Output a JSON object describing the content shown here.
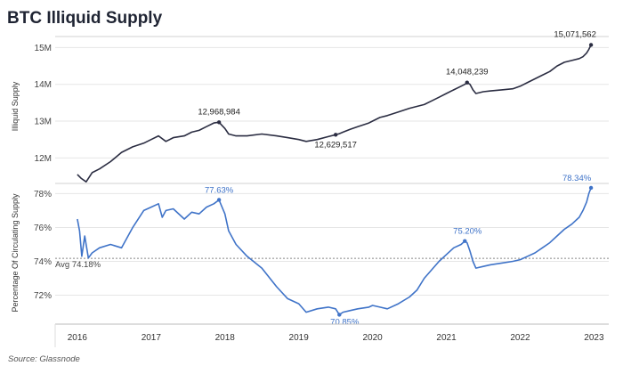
{
  "title": "BTC Illiquid Supply",
  "source": "Source: Glassnode",
  "colors": {
    "top_line": "#2b2d42",
    "bottom_line": "#3f73c8",
    "annotation_top": "#222222",
    "annotation_bottom": "#3f73c8",
    "grid": "#e6e6e6",
    "avg_line": "#888888"
  },
  "chart_data": [
    {
      "type": "line",
      "title": "BTC Illiquid Supply",
      "xlabel": "",
      "ylabel": "Illiquid Supply",
      "x_ticks": [
        "2016",
        "2017",
        "2018",
        "2019",
        "2020",
        "2021",
        "2022",
        "2023"
      ],
      "y_ticks": [
        "12M",
        "13M",
        "14M",
        "15M"
      ],
      "ylim": [
        11500000,
        15300000
      ],
      "xlim": [
        2015.7,
        2023.2
      ],
      "grid": true,
      "series": [
        {
          "x": [
            2016.0,
            2016.05,
            2016.12,
            2016.2,
            2016.3,
            2016.45,
            2016.6,
            2016.75,
            2016.9,
            2017.0,
            2017.1,
            2017.2,
            2017.3,
            2017.45,
            2017.55,
            2017.65,
            2017.75,
            2017.85,
            2017.92,
            2018.0,
            2018.05,
            2018.15,
            2018.3,
            2018.5,
            2018.7,
            2018.85,
            2019.0,
            2019.1,
            2019.25,
            2019.4,
            2019.5,
            2019.55,
            2019.6,
            2019.7,
            2019.8,
            2019.95,
            2020.0,
            2020.1,
            2020.2,
            2020.35,
            2020.5,
            2020.6,
            2020.7,
            2020.8,
            2020.9,
            2021.0,
            2021.1,
            2021.2,
            2021.25,
            2021.28,
            2021.32,
            2021.36,
            2021.4,
            2021.5,
            2021.6,
            2021.75,
            2021.9,
            2022.0,
            2022.1,
            2022.2,
            2022.3,
            2022.4,
            2022.5,
            2022.6,
            2022.7,
            2022.8,
            2022.85,
            2022.9,
            2022.93,
            2022.96
          ],
          "values": [
            11550000,
            11450000,
            11350000,
            11600000,
            11700000,
            11900000,
            12150000,
            12300000,
            12400000,
            12500000,
            12600000,
            12450000,
            12550000,
            12600000,
            12700000,
            12750000,
            12850000,
            12950000,
            12968984,
            12800000,
            12650000,
            12600000,
            12600000,
            12650000,
            12600000,
            12550000,
            12500000,
            12450000,
            12500000,
            12580000,
            12629517,
            12660000,
            12700000,
            12780000,
            12850000,
            12950000,
            13000000,
            13100000,
            13150000,
            13250000,
            13350000,
            13400000,
            13450000,
            13550000,
            13650000,
            13750000,
            13850000,
            13950000,
            14000000,
            14048239,
            14000000,
            13850000,
            13750000,
            13800000,
            13820000,
            13850000,
            13880000,
            13950000,
            14050000,
            14150000,
            14250000,
            14350000,
            14500000,
            14600000,
            14650000,
            14700000,
            14750000,
            14850000,
            14950000,
            15071562
          ]
        }
      ],
      "annotations": [
        {
          "label": "12,968,984",
          "x": 2017.92,
          "y": 12968984
        },
        {
          "label": "12,629,517",
          "x": 2019.5,
          "y": 12629517
        },
        {
          "label": "14,048,239",
          "x": 2021.28,
          "y": 14048239
        },
        {
          "label": "15,071,562",
          "x": 2022.96,
          "y": 15071562
        }
      ]
    },
    {
      "type": "line",
      "title": "",
      "xlabel": "",
      "ylabel": "Percentage Of Circulating Supply",
      "x_ticks": [
        "2016",
        "2017",
        "2018",
        "2019",
        "2020",
        "2021",
        "2022",
        "2023"
      ],
      "y_ticks": [
        "72%",
        "74%",
        "76%",
        "78%"
      ],
      "ylim": [
        70.4,
        78.6
      ],
      "xlim": [
        2015.7,
        2023.2
      ],
      "grid": true,
      "reference_line": {
        "label": "Avg 74.18%",
        "value": 74.18
      },
      "series": [
        {
          "x": [
            2016.0,
            2016.03,
            2016.06,
            2016.1,
            2016.15,
            2016.2,
            2016.3,
            2016.45,
            2016.6,
            2016.75,
            2016.9,
            2017.0,
            2017.1,
            2017.15,
            2017.2,
            2017.3,
            2017.45,
            2017.55,
            2017.65,
            2017.75,
            2017.85,
            2017.92,
            2018.0,
            2018.05,
            2018.15,
            2018.3,
            2018.5,
            2018.7,
            2018.85,
            2019.0,
            2019.1,
            2019.25,
            2019.4,
            2019.5,
            2019.55,
            2019.6,
            2019.7,
            2019.8,
            2019.95,
            2020.0,
            2020.1,
            2020.2,
            2020.35,
            2020.5,
            2020.6,
            2020.7,
            2020.8,
            2020.9,
            2021.0,
            2021.1,
            2021.2,
            2021.25,
            2021.28,
            2021.32,
            2021.36,
            2021.4,
            2021.5,
            2021.6,
            2021.75,
            2021.9,
            2022.0,
            2022.1,
            2022.2,
            2022.3,
            2022.4,
            2022.5,
            2022.6,
            2022.7,
            2022.8,
            2022.85,
            2022.9,
            2022.93,
            2022.96
          ],
          "values": [
            76.5,
            75.8,
            74.3,
            75.5,
            74.2,
            74.5,
            74.8,
            75.0,
            74.8,
            76.0,
            77.0,
            77.2,
            77.4,
            76.6,
            77.0,
            77.1,
            76.5,
            76.9,
            76.8,
            77.2,
            77.4,
            77.63,
            76.8,
            75.8,
            75.0,
            74.3,
            73.6,
            72.5,
            71.8,
            71.5,
            71.0,
            71.2,
            71.3,
            71.2,
            70.85,
            71.0,
            71.1,
            71.2,
            71.3,
            71.4,
            71.3,
            71.2,
            71.5,
            71.9,
            72.3,
            73.0,
            73.5,
            74.0,
            74.4,
            74.8,
            75.0,
            75.2,
            75.1,
            74.6,
            74.0,
            73.6,
            73.7,
            73.8,
            73.9,
            74.0,
            74.1,
            74.3,
            74.5,
            74.8,
            75.1,
            75.5,
            75.9,
            76.2,
            76.6,
            77.0,
            77.5,
            78.0,
            78.34
          ]
        }
      ],
      "annotations": [
        {
          "label": "77.63%",
          "x": 2017.92,
          "y": 77.63
        },
        {
          "label": "70.85%",
          "x": 2019.55,
          "y": 70.85
        },
        {
          "label": "75.20%",
          "x": 2021.25,
          "y": 75.2
        },
        {
          "label": "78.34%",
          "x": 2022.96,
          "y": 78.34
        }
      ]
    }
  ]
}
